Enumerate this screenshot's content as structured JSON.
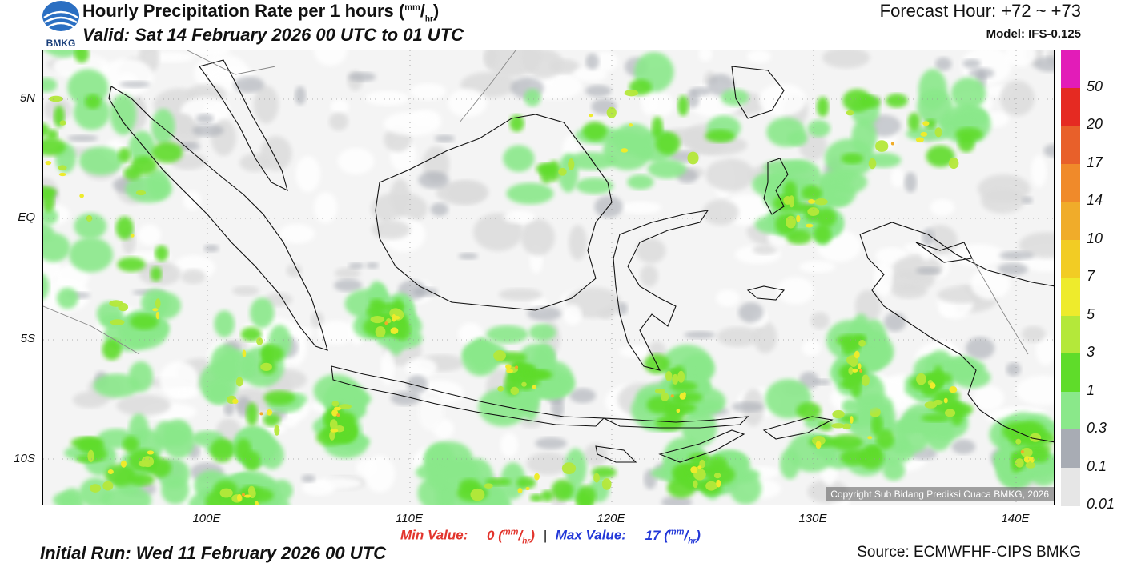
{
  "header": {
    "title": "Hourly Precipitation Rate per 1 hours",
    "unit_num": "mm",
    "unit_den": "hr",
    "valid": "Valid: Sat 14 February 2026 00 UTC to 01 UTC",
    "forecast": "Forecast Hour: +72 ~ +73",
    "model": "Model: IFS-0.125"
  },
  "logo": {
    "text": "BMKG",
    "icon": "bmkg-logo-icon"
  },
  "map": {
    "lat_labels": [
      "5N",
      "EQ",
      "5S",
      "10S"
    ],
    "lon_labels": [
      "100E",
      "110E",
      "120E",
      "130E",
      "140E"
    ],
    "copyright": "Copyright Sub Bidang Prediksi Cuaca BMKG, 2026"
  },
  "legend": {
    "levels": [
      "50",
      "20",
      "17",
      "14",
      "10",
      "7",
      "5",
      "3",
      "1",
      "0.3",
      "0.1",
      "0.01"
    ],
    "colors": [
      "#e21cb8",
      "#e52a22",
      "#e8602a",
      "#f08a2a",
      "#f0ac2a",
      "#f2cc24",
      "#eeeb2c",
      "#b4e83a",
      "#5fdc2a",
      "#8ae88a",
      "#a8acb4",
      "#e6e6e6"
    ]
  },
  "stats": {
    "min_label": "Min Value:",
    "min_value": "0",
    "max_label": "Max Value:",
    "max_value": "17",
    "separator": "|"
  },
  "footer": {
    "initial_run": "Initial Run: Wed 11 February 2026 00 UTC",
    "source": "Source: ECMWFHF-CIPS BMKG"
  }
}
